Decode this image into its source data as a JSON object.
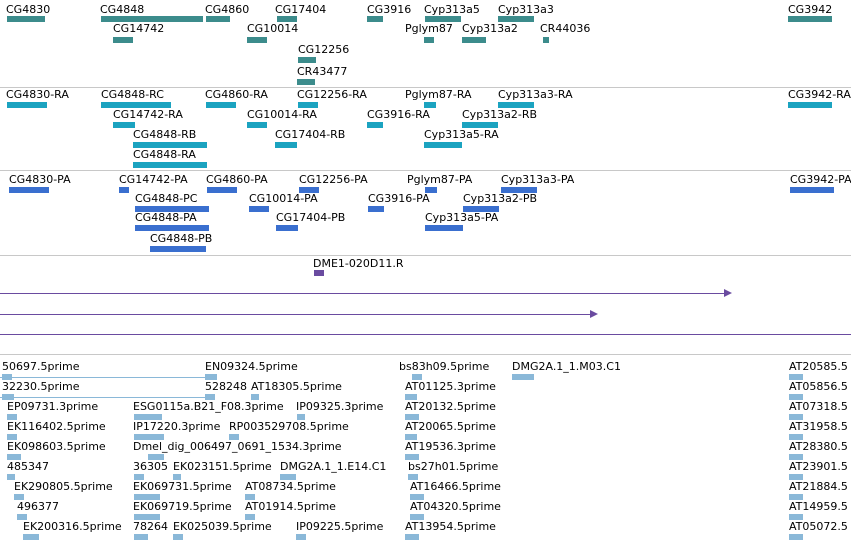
{
  "colors": {
    "gene": "#3c8c8c",
    "mrna_teal": "#1ba3c0",
    "mrna_blue": "#3a6fcf",
    "clone": "#6a4ba0",
    "est": "#8ab8d8",
    "separator": "#c8c8c8"
  },
  "gene_track": {
    "labels": [
      "CG4830",
      "CG4848",
      "CG4860",
      "CG17404",
      "CG3916",
      "Cyp313a5",
      "Cyp313a3",
      "CG3942",
      "CG14742",
      "CG10014",
      "Pglym87",
      "Cyp313a2",
      "CR44036",
      "CG12256",
      "CR43477"
    ]
  },
  "transcript_track_ra": {
    "labels": [
      "CG4830-RA",
      "CG4848-RC",
      "CG4860-RA",
      "CG12256-RA",
      "Pglym87-RA",
      "Cyp313a3-RA",
      "CG3942-RA",
      "CG14742-RA",
      "CG10014-RA",
      "CG3916-RA",
      "Cyp313a2-RB",
      "CG4848-RB",
      "CG17404-RB",
      "Cyp313a5-RA",
      "CG4848-RA"
    ]
  },
  "transcript_track_pa": {
    "labels": [
      "CG4830-PA",
      "CG14742-PA",
      "CG4860-PA",
      "CG12256-PA",
      "Pglym87-PA",
      "Cyp313a3-PA",
      "CG3942-PA",
      "CG4848-PC",
      "CG10014-PA",
      "CG3916-PA",
      "Cyp313a2-PB",
      "CG4848-PA",
      "CG17404-PB",
      "Cyp313a5-PA",
      "CG4848-PB"
    ]
  },
  "clone_track": {
    "labels": [
      "DME1-020D11.R"
    ]
  },
  "est_track": {
    "labels": [
      "50697.5prime",
      "EN09324.5prime",
      "bs83h09.5prime",
      "DMG2A.1_1.M03.C1",
      "AT20585.5",
      "32230.5prime",
      "528248",
      "AT18305.5prime",
      "AT01125.3prime",
      "AT05856.5",
      "EP09731.3prime",
      "ESG0115a.B21_F08.3prime",
      "IP09325.3prime",
      "AT20132.5prime",
      "AT07318.5",
      "EK116402.5prime",
      "IP17220.3prime",
      "RP003529708.5prime",
      "AT20065.5prime",
      "AT31958.5",
      "EK098603.5prime",
      "Dmel_dig_006497_0691_1534.3prime",
      "AT19536.3prime",
      "AT28380.5",
      "485347",
      "36305",
      "EK023151.5prime",
      "DMG2A.1_1.E14.C1",
      "bs27h01.5prime",
      "AT23901.5",
      "EK290805.5prime",
      "EK069731.5prime",
      "AT08734.5prime",
      "AT16466.5prime",
      "AT21884.5",
      "496377",
      "EK069719.5prime",
      "AT01914.5prime",
      "AT04320.5prime",
      "AT14959.5",
      "EK200316.5prime",
      "78264",
      "EK025039.5prime",
      "IP09225.5prime",
      "AT13954.5prime",
      "AT05072.5"
    ]
  }
}
